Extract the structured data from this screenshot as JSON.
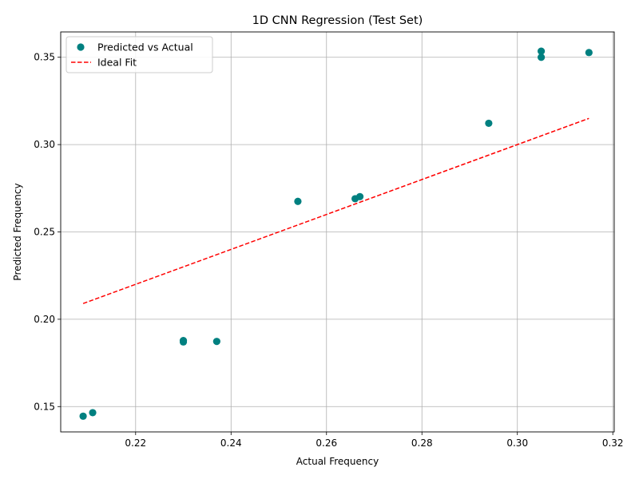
{
  "chart_data": {
    "type": "scatter",
    "title": "1D CNN Regression (Test Set)",
    "xlabel": "Actual Frequency",
    "ylabel": "Predicted Frequency",
    "xlim": [
      0.2043,
      0.3203
    ],
    "ylim": [
      0.1355,
      0.3645
    ],
    "xticks": [
      0.22,
      0.24,
      0.26,
      0.28,
      0.3,
      0.32
    ],
    "xtick_labels": [
      "0.22",
      "0.24",
      "0.26",
      "0.28",
      "0.30",
      "0.32"
    ],
    "yticks": [
      0.15,
      0.2,
      0.25,
      0.3,
      0.35
    ],
    "ytick_labels": [
      "0.15",
      "0.20",
      "0.25",
      "0.30",
      "0.35"
    ],
    "grid": true,
    "legend_position": "top-left",
    "series": [
      {
        "name": "Predicted vs Actual",
        "kind": "scatter",
        "color": "#008080",
        "points": [
          {
            "x": 0.209,
            "y": 0.1445
          },
          {
            "x": 0.211,
            "y": 0.1465
          },
          {
            "x": 0.23,
            "y": 0.187
          },
          {
            "x": 0.23,
            "y": 0.1878
          },
          {
            "x": 0.237,
            "y": 0.1873
          },
          {
            "x": 0.254,
            "y": 0.2675
          },
          {
            "x": 0.266,
            "y": 0.269
          },
          {
            "x": 0.267,
            "y": 0.2702
          },
          {
            "x": 0.294,
            "y": 0.3122
          },
          {
            "x": 0.305,
            "y": 0.35
          },
          {
            "x": 0.305,
            "y": 0.3535
          },
          {
            "x": 0.315,
            "y": 0.3527
          }
        ]
      },
      {
        "name": "Ideal Fit",
        "kind": "line",
        "style": "dashed",
        "color": "#ff0000",
        "points": [
          {
            "x": 0.209,
            "y": 0.209
          },
          {
            "x": 0.315,
            "y": 0.315
          }
        ]
      }
    ]
  }
}
